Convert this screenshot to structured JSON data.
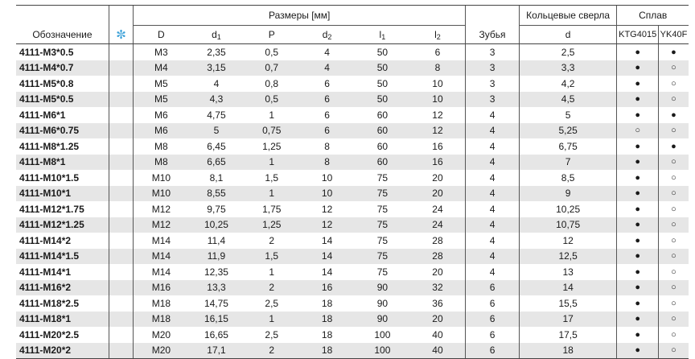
{
  "header": {
    "designation": "Обозначение",
    "star": "✼",
    "dimensions_group": "Размеры [мм]",
    "teeth": "Зубья",
    "ring_drill_group": "Кольцевые сверла",
    "alloy_group": "Сплав",
    "columns": {
      "D": "D",
      "d1_base": "d",
      "d1_sub": "1",
      "P": "P",
      "d2_base": "d",
      "d2_sub": "2",
      "l1_base": "l",
      "l1_sub": "1",
      "l2_base": "l",
      "l2_sub": "2",
      "drill_d": "d",
      "alloy1": "KTG4015",
      "alloy2": "YK40F"
    }
  },
  "rows": [
    {
      "code": "4111-M3*0.5",
      "D": "M3",
      "d1": "2,35",
      "P": "0,5",
      "d2": "4",
      "l1": "50",
      "l2": "6",
      "teeth": "3",
      "drill": "2,5",
      "a1": "●",
      "a2": "●"
    },
    {
      "code": "4111-M4*0.7",
      "D": "M4",
      "d1": "3,15",
      "P": "0,7",
      "d2": "4",
      "l1": "50",
      "l2": "8",
      "teeth": "3",
      "drill": "3,3",
      "a1": "●",
      "a2": "○"
    },
    {
      "code": "4111-M5*0.8",
      "D": "M5",
      "d1": "4",
      "P": "0,8",
      "d2": "6",
      "l1": "50",
      "l2": "10",
      "teeth": "3",
      "drill": "4,2",
      "a1": "●",
      "a2": "○"
    },
    {
      "code": "4111-M5*0.5",
      "D": "M5",
      "d1": "4,3",
      "P": "0,5",
      "d2": "6",
      "l1": "50",
      "l2": "10",
      "teeth": "3",
      "drill": "4,5",
      "a1": "●",
      "a2": "○"
    },
    {
      "code": "4111-M6*1",
      "D": "M6",
      "d1": "4,75",
      "P": "1",
      "d2": "6",
      "l1": "60",
      "l2": "12",
      "teeth": "4",
      "drill": "5",
      "a1": "●",
      "a2": "●"
    },
    {
      "code": "4111-M6*0.75",
      "D": "M6",
      "d1": "5",
      "P": "0,75",
      "d2": "6",
      "l1": "60",
      "l2": "12",
      "teeth": "4",
      "drill": "5,25",
      "a1": "○",
      "a2": "○"
    },
    {
      "code": "4111-M8*1.25",
      "D": "M8",
      "d1": "6,45",
      "P": "1,25",
      "d2": "8",
      "l1": "60",
      "l2": "16",
      "teeth": "4",
      "drill": "6,75",
      "a1": "●",
      "a2": "●"
    },
    {
      "code": "4111-M8*1",
      "D": "M8",
      "d1": "6,65",
      "P": "1",
      "d2": "8",
      "l1": "60",
      "l2": "16",
      "teeth": "4",
      "drill": "7",
      "a1": "●",
      "a2": "○"
    },
    {
      "code": "4111-M10*1.5",
      "D": "M10",
      "d1": "8,1",
      "P": "1,5",
      "d2": "10",
      "l1": "75",
      "l2": "20",
      "teeth": "4",
      "drill": "8,5",
      "a1": "●",
      "a2": "○"
    },
    {
      "code": "4111-M10*1",
      "D": "M10",
      "d1": "8,55",
      "P": "1",
      "d2": "10",
      "l1": "75",
      "l2": "20",
      "teeth": "4",
      "drill": "9",
      "a1": "●",
      "a2": "○"
    },
    {
      "code": "4111-M12*1.75",
      "D": "M12",
      "d1": "9,75",
      "P": "1,75",
      "d2": "12",
      "l1": "75",
      "l2": "24",
      "teeth": "4",
      "drill": "10,25",
      "a1": "●",
      "a2": "○"
    },
    {
      "code": "4111-M12*1.25",
      "D": "M12",
      "d1": "10,25",
      "P": "1,25",
      "d2": "12",
      "l1": "75",
      "l2": "24",
      "teeth": "4",
      "drill": "10,75",
      "a1": "●",
      "a2": "○"
    },
    {
      "code": "4111-M14*2",
      "D": "M14",
      "d1": "11,4",
      "P": "2",
      "d2": "14",
      "l1": "75",
      "l2": "28",
      "teeth": "4",
      "drill": "12",
      "a1": "●",
      "a2": "○"
    },
    {
      "code": "4111-M14*1.5",
      "D": "M14",
      "d1": "11,9",
      "P": "1,5",
      "d2": "14",
      "l1": "75",
      "l2": "28",
      "teeth": "4",
      "drill": "12,5",
      "a1": "●",
      "a2": "○"
    },
    {
      "code": "4111-M14*1",
      "D": "M14",
      "d1": "12,35",
      "P": "1",
      "d2": "14",
      "l1": "75",
      "l2": "20",
      "teeth": "4",
      "drill": "13",
      "a1": "●",
      "a2": "○"
    },
    {
      "code": "4111-M16*2",
      "D": "M16",
      "d1": "13,3",
      "P": "2",
      "d2": "16",
      "l1": "90",
      "l2": "32",
      "teeth": "6",
      "drill": "14",
      "a1": "●",
      "a2": "○"
    },
    {
      "code": "4111-M18*2.5",
      "D": "M18",
      "d1": "14,75",
      "P": "2,5",
      "d2": "18",
      "l1": "90",
      "l2": "36",
      "teeth": "6",
      "drill": "15,5",
      "a1": "●",
      "a2": "○"
    },
    {
      "code": "4111-M18*1",
      "D": "M18",
      "d1": "16,15",
      "P": "1",
      "d2": "18",
      "l1": "90",
      "l2": "20",
      "teeth": "6",
      "drill": "17",
      "a1": "●",
      "a2": "○"
    },
    {
      "code": "4111-M20*2.5",
      "D": "M20",
      "d1": "16,65",
      "P": "2,5",
      "d2": "18",
      "l1": "100",
      "l2": "40",
      "teeth": "6",
      "drill": "17,5",
      "a1": "●",
      "a2": "○"
    },
    {
      "code": "4111-M20*2",
      "D": "M20",
      "d1": "17,1",
      "P": "2",
      "d2": "18",
      "l1": "100",
      "l2": "40",
      "teeth": "6",
      "drill": "18",
      "a1": "●",
      "a2": "○"
    }
  ]
}
